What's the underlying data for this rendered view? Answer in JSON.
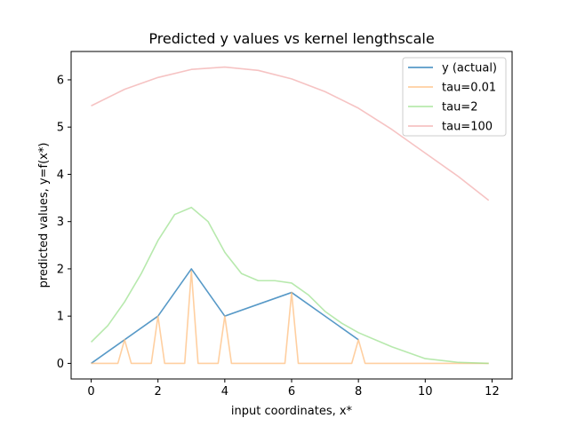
{
  "chart_data": {
    "type": "line",
    "title": "Predicted y values vs kernel lengthscale",
    "xlabel": "input coordinates, x*",
    "ylabel": "predicted values, y=f(x*)",
    "xlim": [
      -0.6,
      12.6
    ],
    "ylim": [
      -0.33,
      6.6
    ],
    "xticks": [
      0,
      2,
      4,
      6,
      8,
      10,
      12
    ],
    "yticks": [
      0,
      1,
      2,
      3,
      4,
      5,
      6
    ],
    "grid": false,
    "legend": "top-right",
    "series": [
      {
        "name": "y (actual)",
        "color": "#1f77b4",
        "x": [
          0,
          2,
          3,
          4,
          6,
          8
        ],
        "y": [
          0,
          1,
          2,
          1,
          1.5,
          0.5
        ]
      },
      {
        "name": "tau=0.01",
        "color": "#ffbb78",
        "x": [
          0,
          0.8,
          1.0,
          1.2,
          1.8,
          2.0,
          2.2,
          2.8,
          3.0,
          3.2,
          3.8,
          4.0,
          4.2,
          5.8,
          6.0,
          6.2,
          7.8,
          8.0,
          8.2,
          11.9
        ],
        "y": [
          0,
          0,
          0.5,
          0,
          0,
          1.0,
          0,
          0,
          1.95,
          0,
          0,
          1.0,
          0,
          0,
          1.5,
          0,
          0,
          0.5,
          0,
          0
        ]
      },
      {
        "name": "tau=2",
        "color": "#98df8a",
        "x": [
          0,
          0.5,
          1,
          1.5,
          2,
          2.5,
          3,
          3.5,
          4,
          4.5,
          5,
          5.5,
          6,
          6.5,
          7,
          7.5,
          8,
          9,
          10,
          11,
          11.9
        ],
        "y": [
          0.45,
          0.8,
          1.3,
          1.9,
          2.6,
          3.15,
          3.3,
          3.0,
          2.35,
          1.9,
          1.75,
          1.75,
          1.7,
          1.45,
          1.1,
          0.85,
          0.65,
          0.35,
          0.1,
          0.02,
          0.0
        ]
      },
      {
        "name": "tau=100",
        "color": "#f2a9a9",
        "x": [
          0,
          1,
          2,
          3,
          4,
          5,
          6,
          7,
          8,
          9,
          10,
          11,
          11.9
        ],
        "y": [
          5.45,
          5.8,
          6.05,
          6.22,
          6.27,
          6.2,
          6.02,
          5.75,
          5.4,
          4.95,
          4.45,
          3.95,
          3.45
        ]
      }
    ]
  }
}
